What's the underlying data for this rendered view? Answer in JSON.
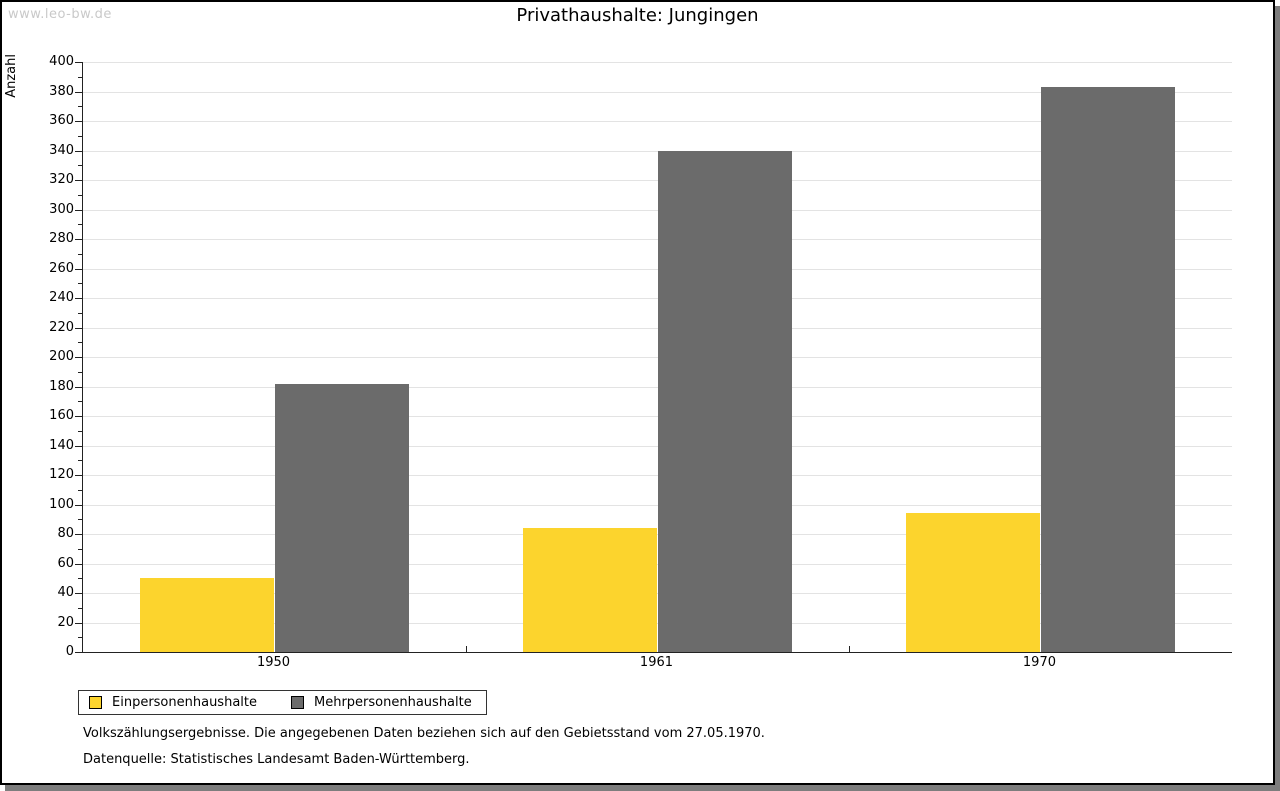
{
  "watermark": "www.leo-bw.de",
  "footer": {
    "line1": "Volkszählungsergebnisse. Die angegebenen Daten beziehen sich auf den Gebietsstand vom 27.05.1970.",
    "line2": "Datenquelle: Statistisches Landesamt Baden-Württemberg."
  },
  "chart_data": {
    "type": "bar",
    "title": "Privathaushalte: Jungingen",
    "ylabel": "Anzahl",
    "xlabel": "",
    "categories": [
      "1950",
      "1961",
      "1970"
    ],
    "series": [
      {
        "name": "Einpersonenhaushalte",
        "color": "#fcd42d",
        "values": [
          50,
          84,
          94
        ]
      },
      {
        "name": "Mehrpersonenhaushalte",
        "color": "#6b6b6b",
        "values": [
          182,
          340,
          383
        ]
      }
    ],
    "ylim": [
      0,
      400
    ],
    "ytick_step": 20,
    "minor_tick_step": 10,
    "grid": "horizontal-major",
    "legend_position": "bottom-left",
    "axis_color": "#222222",
    "gridline_color": "#e3e3e3"
  }
}
